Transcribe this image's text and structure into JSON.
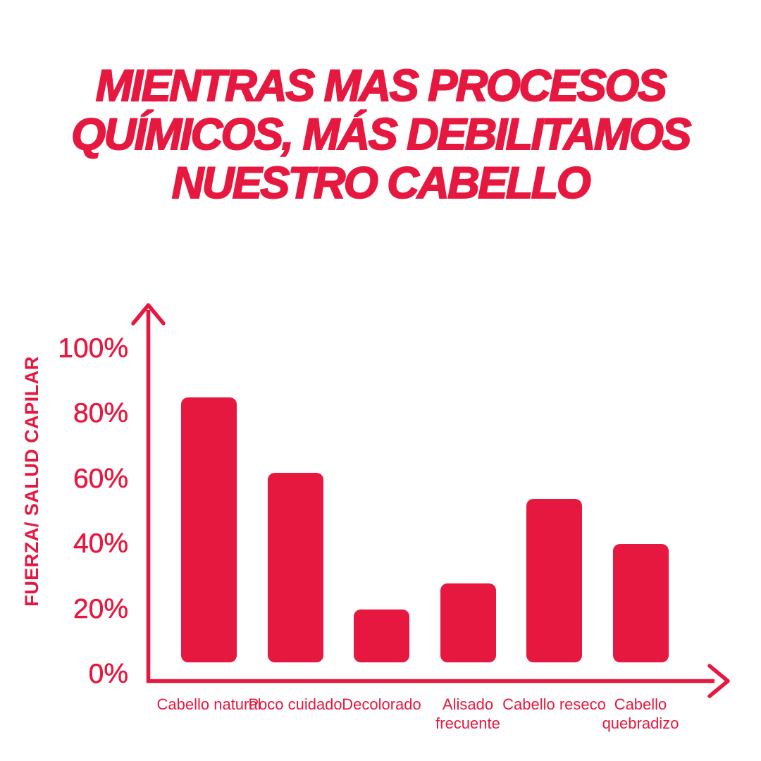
{
  "page": {
    "background": "#ffffff",
    "accent_color": "#E7183F"
  },
  "title": {
    "lines": [
      "MIENTRAS MAS PROCESOS",
      "QUÍMICOS, MÁS DEBILITAMOS",
      "NUESTRO CABELLO"
    ]
  },
  "chart_data": {
    "type": "bar",
    "title": "MIENTRAS MAS PROCESOS QUÍMICOS, MÁS DEBILITAMOS NUESTRO CABELLO",
    "categories": [
      "Cabello natural",
      "Poco cuidado",
      "Decolorado",
      "Alisado\nfrecuente",
      "Cabello reseco",
      "Cabello\nquebradizo"
    ],
    "values": [
      85,
      62,
      20,
      28,
      54,
      40
    ],
    "unit": "%",
    "xlabel": "",
    "ylabel": "FUERZA/ SALUD CAPILAR",
    "ylim": [
      0,
      100
    ],
    "yticks": [
      0,
      20,
      40,
      60,
      80,
      100
    ],
    "ytick_labels": [
      "0%",
      "20%",
      "40%",
      "60%",
      "80%",
      "100%"
    ],
    "grid": false,
    "legend": null,
    "bar_color": "#E7183F",
    "axis_color": "#E7183F",
    "axis_style": "arrows"
  }
}
